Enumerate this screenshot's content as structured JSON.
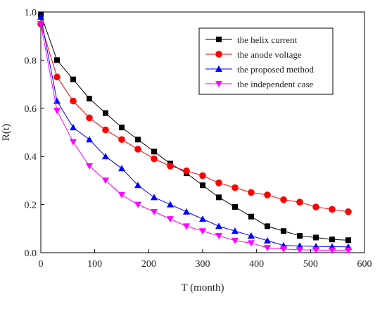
{
  "chart_data": {
    "type": "line",
    "title": "",
    "xlabel": "T (month)",
    "ylabel": "R(t)",
    "xlim": [
      0,
      600
    ],
    "ylim": [
      0,
      1.0
    ],
    "xticks": [
      0,
      100,
      200,
      300,
      400,
      500,
      600
    ],
    "yticks": [
      0.0,
      0.2,
      0.4,
      0.6,
      0.8,
      1.0
    ],
    "xtick_labels": [
      "0",
      "100",
      "200",
      "300",
      "400",
      "500",
      "600"
    ],
    "ytick_labels": [
      "0.0",
      "0.2",
      "0.4",
      "0.6",
      "0.8",
      "1.0"
    ],
    "grid": false,
    "legend_position": "top-right",
    "x": [
      0,
      30,
      60,
      90,
      120,
      150,
      180,
      210,
      240,
      270,
      300,
      330,
      360,
      390,
      420,
      450,
      480,
      510,
      540,
      570
    ],
    "series": [
      {
        "name": "the helix current",
        "color": "#000000",
        "marker": "square",
        "values": [
          0.99,
          0.8,
          0.72,
          0.64,
          0.58,
          0.52,
          0.47,
          0.42,
          0.37,
          0.33,
          0.28,
          0.23,
          0.19,
          0.15,
          0.11,
          0.09,
          0.07,
          0.063,
          0.055,
          0.052
        ]
      },
      {
        "name": "the anode voltage",
        "color": "#ff0000",
        "marker": "circle",
        "values": [
          0.95,
          0.73,
          0.63,
          0.56,
          0.51,
          0.47,
          0.43,
          0.39,
          0.36,
          0.34,
          0.32,
          0.29,
          0.27,
          0.25,
          0.24,
          0.22,
          0.21,
          0.19,
          0.18,
          0.17
        ]
      },
      {
        "name": "the proposed method",
        "color": "#0000ff",
        "marker": "triangle-up",
        "values": [
          0.98,
          0.63,
          0.52,
          0.47,
          0.4,
          0.35,
          0.28,
          0.23,
          0.2,
          0.17,
          0.14,
          0.11,
          0.09,
          0.07,
          0.05,
          0.03,
          0.028,
          0.026,
          0.025,
          0.024
        ]
      },
      {
        "name": "the independent case",
        "color": "#ff00ff",
        "marker": "triangle-down",
        "values": [
          0.95,
          0.59,
          0.46,
          0.36,
          0.3,
          0.24,
          0.2,
          0.17,
          0.14,
          0.11,
          0.09,
          0.07,
          0.05,
          0.04,
          0.02,
          0.015,
          0.012,
          0.011,
          0.01,
          0.01
        ]
      }
    ]
  }
}
